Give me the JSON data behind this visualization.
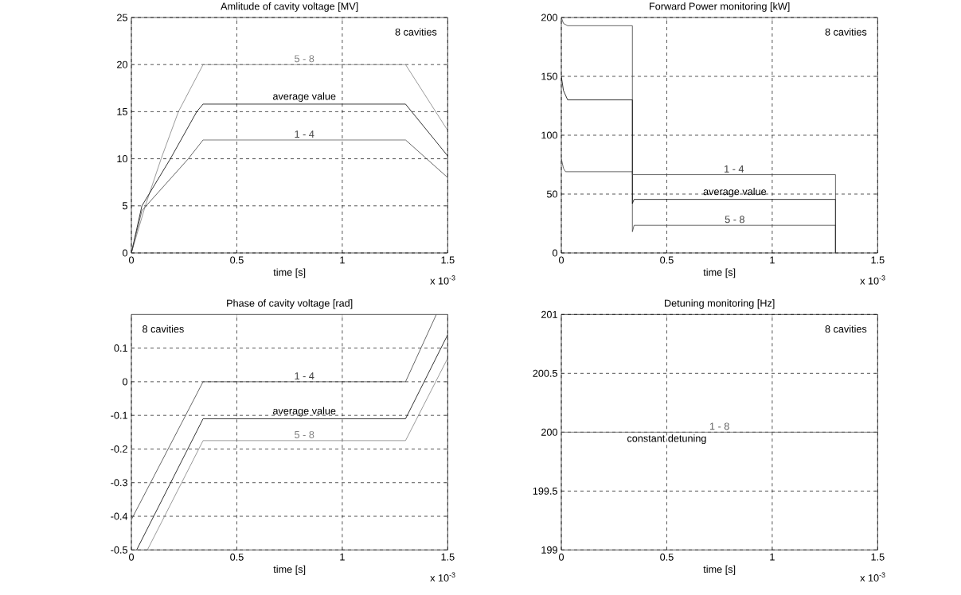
{
  "chart_data": [
    {
      "type": "line",
      "title": "Amlitude of cavity voltage [MV]",
      "xlabel": "time [s]",
      "xlim": [
        0,
        1.5
      ],
      "xticks": [
        0,
        0.5,
        1,
        1.5
      ],
      "ylim": [
        0,
        25
      ],
      "yticks": [
        0,
        5,
        10,
        15,
        20,
        25
      ],
      "grid": true,
      "series": [
        {
          "name": "5 - 8",
          "color": "#808080",
          "x": [
            0,
            0.066,
            0.141,
            0.223,
            0.34,
            1.3,
            1.5
          ],
          "values": [
            0,
            5,
            10,
            15,
            20,
            20,
            13
          ]
        },
        {
          "name": "average value",
          "color": "#000000",
          "x": [
            0,
            0.05,
            0.185,
            0.31,
            0.34,
            1.3,
            1.5
          ],
          "values": [
            0,
            5,
            10,
            15,
            15.8,
            15.8,
            10.3
          ]
        },
        {
          "name": "1 - 4",
          "color": "#404040",
          "x": [
            0,
            0.05,
            0.27,
            0.34,
            1.3,
            1.5
          ],
          "values": [
            0,
            4.5,
            10,
            12,
            12,
            8
          ]
        }
      ],
      "annotations": [
        "8 cavities",
        "x 10$^{-3}$"
      ]
    },
    {
      "type": "line",
      "title": "Forward Power monitoring [kW]",
      "xlabel": "time [s]",
      "xlim": [
        0,
        1.5
      ],
      "xticks": [
        0,
        0.5,
        1,
        1.5
      ],
      "ylim": [
        0,
        200
      ],
      "yticks": [
        0,
        50,
        100,
        150,
        200
      ],
      "grid": true,
      "series": [
        {
          "name": "5 - 8",
          "color": "#404040",
          "x": [
            0,
            0.01,
            0.03,
            0.337,
            0.337,
            0.345,
            1.3,
            1.3
          ],
          "values": [
            200,
            195,
            193,
            193,
            18,
            23.5,
            23.5,
            0
          ]
        },
        {
          "name": "average value",
          "color": "#000000",
          "x": [
            0,
            0.01,
            0.03,
            0.337,
            0.337,
            0.345,
            1.3,
            1.3
          ],
          "values": [
            150,
            138,
            130,
            130,
            42,
            45.5,
            45.5,
            0
          ]
        },
        {
          "name": "1 - 4",
          "color": "#404040",
          "x": [
            0,
            0.01,
            0.02,
            0.337,
            0.337,
            1.3,
            1.3
          ],
          "values": [
            80,
            72,
            69,
            69,
            66.5,
            66.5,
            0
          ]
        }
      ],
      "annotations": [
        "8 cavities",
        "x 10$^{-3}$"
      ]
    },
    {
      "type": "line",
      "title": "Phase of cavity voltage [rad]",
      "xlabel": "time [s]",
      "xlim": [
        0,
        1.5
      ],
      "xticks": [
        0,
        0.5,
        1,
        1.5
      ],
      "ylim": [
        -0.5,
        0.2
      ],
      "yticks": [
        -0.5,
        -0.4,
        -0.3,
        -0.2,
        -0.1,
        0,
        0.1
      ],
      "grid": true,
      "series": [
        {
          "name": "1 - 4",
          "color": "#404040",
          "x": [
            0,
            0.34,
            1.3,
            1.446
          ],
          "values": [
            -0.41,
            0,
            0,
            0.2
          ]
        },
        {
          "name": "average value",
          "color": "#000000",
          "x": [
            0.025,
            0.34,
            1.3,
            1.5
          ],
          "values": [
            -0.5,
            -0.11,
            -0.11,
            0.14
          ]
        },
        {
          "name": "5 - 8",
          "color": "#808080",
          "x": [
            0.076,
            0.34,
            1.3,
            1.5
          ],
          "values": [
            -0.5,
            -0.175,
            -0.175,
            0.07
          ]
        }
      ],
      "annotations": [
        "8 cavities",
        "x 10$^{-3}$"
      ]
    },
    {
      "type": "line",
      "title": "Detuning monitoring [Hz]",
      "xlabel": "time [s]",
      "xlim": [
        0,
        1.5
      ],
      "xticks": [
        0,
        0.5,
        1,
        1.5
      ],
      "ylim": [
        199,
        201
      ],
      "yticks": [
        199,
        199.5,
        200,
        200.5,
        201
      ],
      "grid": true,
      "series": [
        {
          "name": "1 - 8",
          "color": "#606060",
          "x": [
            0,
            1.5
          ],
          "values": [
            200,
            200
          ]
        }
      ],
      "annotations": [
        "8 cavities",
        {
          "text": "constant detuning",
          "x": 0.5,
          "y": 200
        },
        "x 10$^{-3}$"
      ]
    }
  ]
}
